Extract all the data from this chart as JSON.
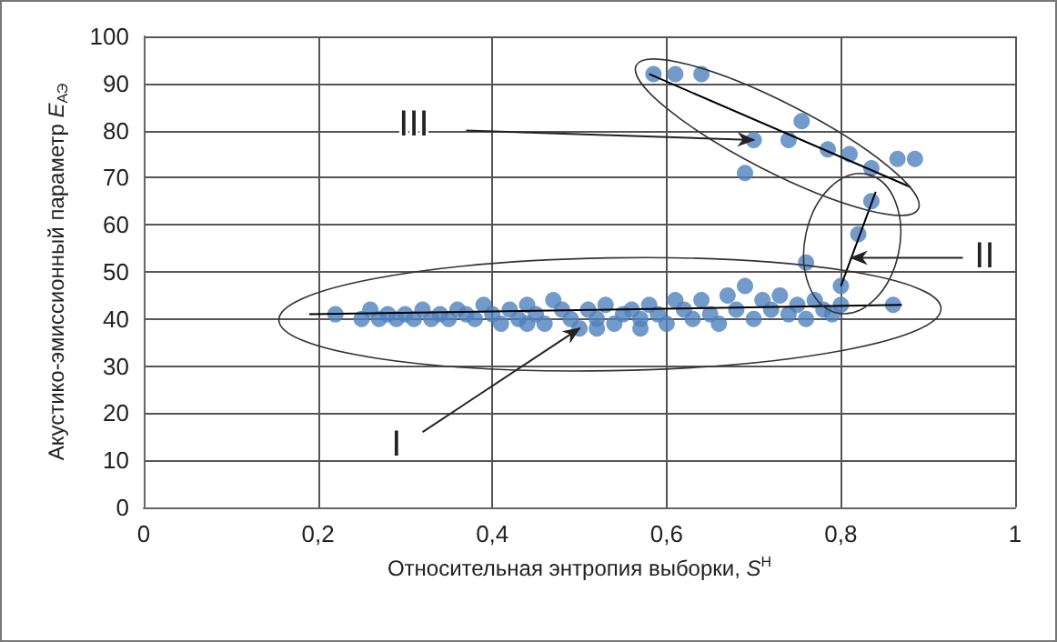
{
  "chart_data": {
    "type": "scatter",
    "xlabel": "Относительная энтропия выборки, S$^{Н}$",
    "ylabel": "Акустико-эмиссионный параметр E$_{АЭ}$",
    "xlim": [
      0,
      1
    ],
    "ylim": [
      0,
      100
    ],
    "xticks": [
      0,
      {
        "value": 0.2,
        "label": "0,2"
      },
      {
        "value": 0.4,
        "label": "0,4"
      },
      {
        "value": 0.6,
        "label": "0,6"
      },
      {
        "value": 0.8,
        "label": "0,8"
      },
      1
    ],
    "yticks": [
      0,
      10,
      20,
      30,
      40,
      50,
      60,
      70,
      80,
      90,
      100
    ],
    "grid": true,
    "marker": "circle",
    "series": [
      {
        "color": "#4f81bd",
        "x": [
          0.22,
          0.25,
          0.26,
          0.27,
          0.28,
          0.29,
          0.3,
          0.31,
          0.32,
          0.33,
          0.34,
          0.35,
          0.36,
          0.37,
          0.38,
          0.39,
          0.4,
          0.41,
          0.42,
          0.43,
          0.44,
          0.44,
          0.45,
          0.46,
          0.47,
          0.48,
          0.49,
          0.5,
          0.51,
          0.52,
          0.52,
          0.53,
          0.54,
          0.55,
          0.56,
          0.57,
          0.57,
          0.58,
          0.59,
          0.6,
          0.61,
          0.62,
          0.63,
          0.64,
          0.65,
          0.66,
          0.67,
          0.68,
          0.69,
          0.7,
          0.71,
          0.72,
          0.73,
          0.74,
          0.75,
          0.76,
          0.77,
          0.78,
          0.79,
          0.8,
          0.86,
          0.76,
          0.8,
          0.82,
          0.835,
          0.585,
          0.61,
          0.64,
          0.69,
          0.7,
          0.74,
          0.755,
          0.785,
          0.81,
          0.835,
          0.865,
          0.885
        ],
        "values": [
          41,
          40,
          42,
          40,
          41,
          40,
          41,
          40,
          42,
          40,
          41,
          40,
          42,
          41,
          40,
          43,
          41,
          39,
          42,
          40,
          43,
          39,
          41,
          39,
          44,
          42,
          40,
          38,
          42,
          40,
          38,
          43,
          39,
          41,
          42,
          40,
          38,
          43,
          41,
          39,
          44,
          42,
          40,
          44,
          41,
          39,
          45,
          42,
          47,
          40,
          44,
          42,
          45,
          41,
          43,
          40,
          44,
          42,
          41,
          43,
          43,
          52,
          47,
          58,
          65,
          92,
          92,
          92,
          71,
          78,
          78,
          82,
          76,
          75,
          72,
          74,
          74
        ]
      },
      {
        "type": "line",
        "marker": "none",
        "color": "#000000",
        "x": [
          0.19,
          0.87
        ],
        "values": [
          41,
          43
        ]
      },
      {
        "type": "line",
        "marker": "none",
        "color": "#000000",
        "x": [
          0.8,
          0.84
        ],
        "values": [
          47,
          67
        ]
      },
      {
        "type": "line",
        "marker": "none",
        "color": "#000000",
        "x": [
          0.58,
          0.88
        ],
        "values": [
          92,
          68
        ]
      }
    ],
    "annotations": [
      {
        "text": "I",
        "x": 0.5,
        "y": 38
      },
      {
        "text": "II",
        "x": 0.812,
        "y": 53
      },
      {
        "text": "III",
        "x": 0.7,
        "y": 78
      }
    ]
  }
}
